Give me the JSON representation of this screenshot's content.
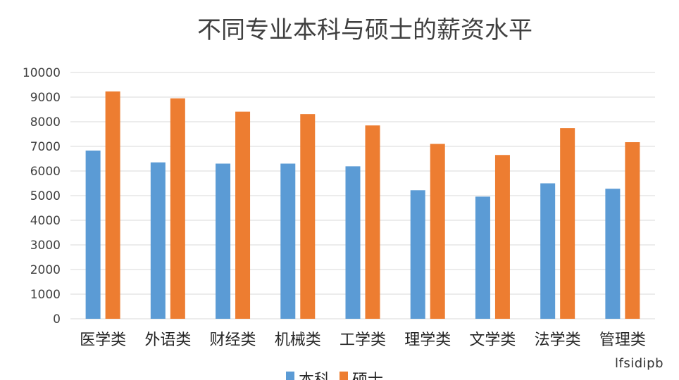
{
  "chart_data": {
    "type": "bar",
    "title": "不同专业本科与硕士的薪资水平",
    "categories": [
      "医学类",
      "外语类",
      "财经类",
      "机械类",
      "工学类",
      "理学类",
      "文学类",
      "法学类",
      "管理类"
    ],
    "series": [
      {
        "name": "本科",
        "color": "#5B9BD5",
        "values": [
          6830,
          6350,
          6300,
          6300,
          6190,
          5220,
          4960,
          5500,
          5280
        ]
      },
      {
        "name": "硕士",
        "color": "#ED7D31",
        "values": [
          9230,
          8950,
          8410,
          8310,
          7850,
          7100,
          6650,
          7740,
          7170
        ]
      }
    ],
    "yticks": [
      "0",
      "1000",
      "2000",
      "3000",
      "4000",
      "5000",
      "6000",
      "7000",
      "8000",
      "9000",
      "10000"
    ],
    "ylim": [
      0,
      10000
    ],
    "grid": true,
    "legend_position": "bottom",
    "gridline_color": "#D9D9D9"
  },
  "watermark": "lfsidipb"
}
